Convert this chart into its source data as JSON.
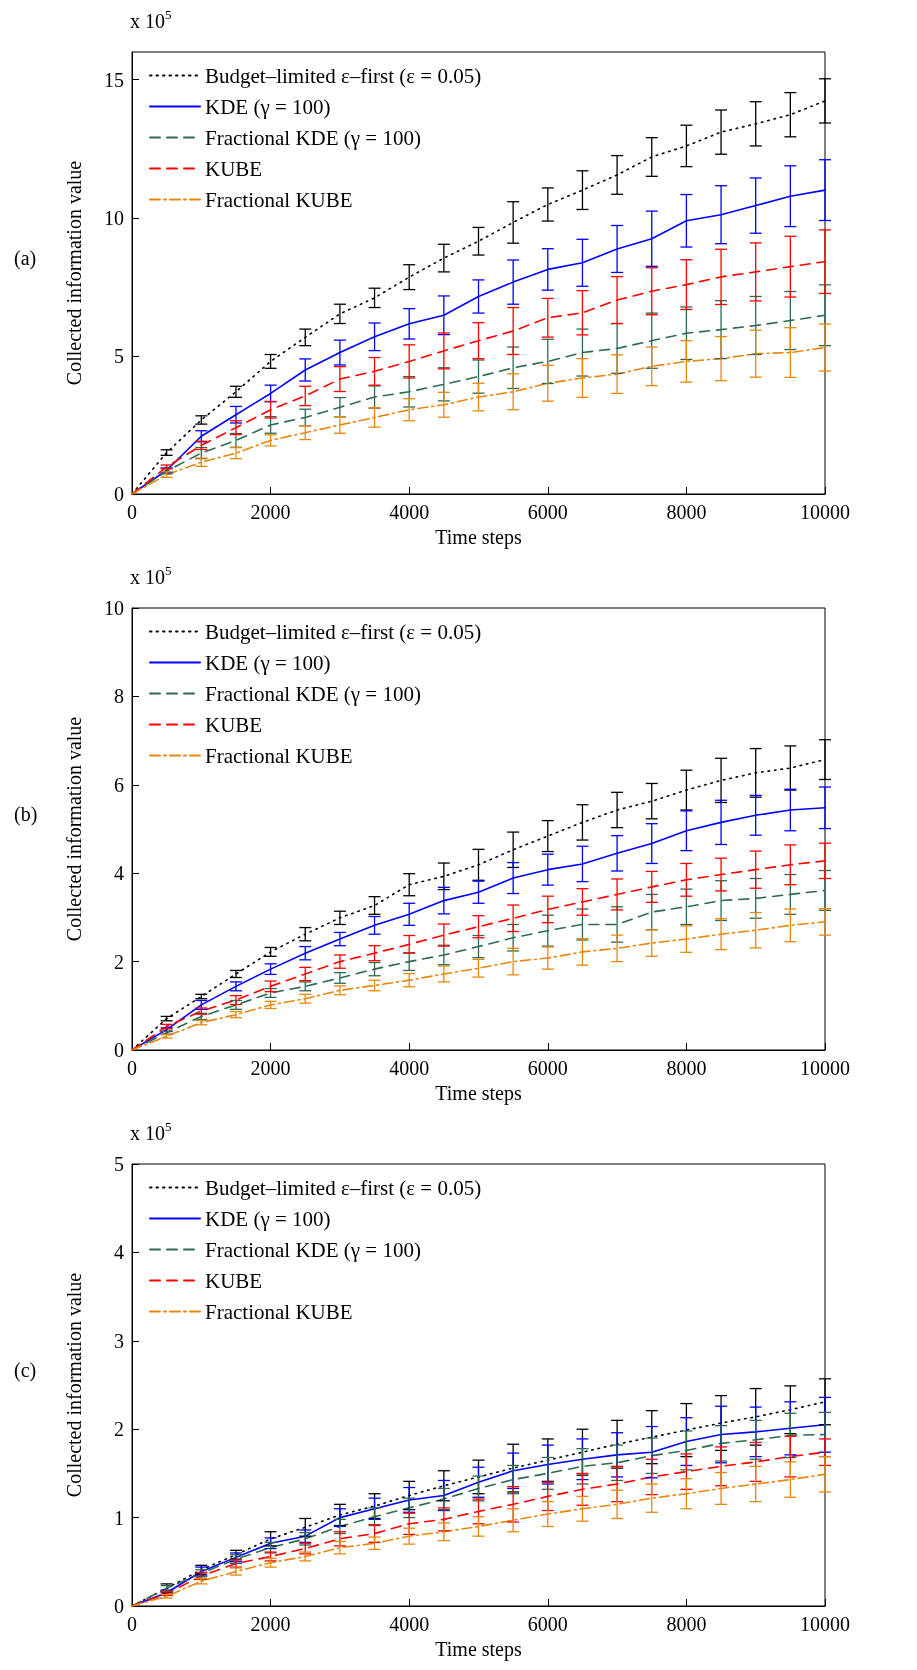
{
  "chart_data": [
    {
      "type": "line",
      "xlabel": "Time steps",
      "ylabel": "Collected information value",
      "annotations": [
        "x 10$^{5}$",
        "(a)"
      ],
      "x": [
        0,
        500,
        1000,
        1500,
        2000,
        2500,
        3000,
        3500,
        4000,
        4500,
        5000,
        5500,
        6000,
        6500,
        7000,
        7500,
        8000,
        8500,
        9000,
        9500,
        10000
      ],
      "xlim": [
        0,
        10000
      ],
      "xticks": [
        0,
        2000,
        4000,
        6000,
        8000,
        10000
      ],
      "ylim": [
        0,
        16
      ],
      "yticks": [
        0,
        5,
        10,
        15
      ],
      "grid": false,
      "legend": "top left",
      "marker": "none",
      "series": [
        {
          "name": "Budget–limited ε–first (ε = 0.05)",
          "color": "#000000",
          "line_style": "dotted",
          "values": [
            0,
            1.5,
            2.68,
            3.7,
            4.8,
            5.67,
            6.52,
            7.1,
            7.85,
            8.54,
            9.15,
            9.83,
            10.48,
            11.0,
            11.55,
            12.2,
            12.6,
            13.1,
            13.4,
            13.73,
            14.23
          ],
          "errors": [
            null,
            0.1,
            0.15,
            0.2,
            0.25,
            0.3,
            0.35,
            0.35,
            0.45,
            0.5,
            0.5,
            0.75,
            0.6,
            0.7,
            0.7,
            0.7,
            0.75,
            0.8,
            0.8,
            0.8,
            0.8
          ]
        },
        {
          "name": "KDE (γ = 100)",
          "color": "#0000ff",
          "line_style": "solid",
          "values": [
            0,
            0.86,
            2.09,
            2.87,
            3.64,
            4.49,
            5.12,
            5.69,
            6.16,
            6.47,
            7.15,
            7.67,
            8.13,
            8.37,
            8.87,
            9.24,
            9.89,
            10.11,
            10.44,
            10.78,
            11.0
          ],
          "errors": [
            null,
            0.08,
            0.2,
            0.3,
            0.3,
            0.4,
            0.45,
            0.5,
            0.55,
            0.7,
            0.6,
            0.8,
            0.75,
            0.85,
            0.85,
            1.0,
            0.95,
            1.05,
            1.0,
            1.1,
            1.1
          ]
        },
        {
          "name": "Fractional KDE (γ = 100)",
          "color": "#2e6b4e",
          "line_style": "dashed",
          "values": [
            0,
            0.83,
            1.48,
            1.94,
            2.5,
            2.77,
            3.14,
            3.51,
            3.7,
            3.97,
            4.25,
            4.57,
            4.8,
            5.12,
            5.27,
            5.55,
            5.82,
            5.95,
            6.1,
            6.28,
            6.47
          ],
          "errors": [
            null,
            0.1,
            0.2,
            0.25,
            0.3,
            0.3,
            0.35,
            0.4,
            0.55,
            0.6,
            0.6,
            0.75,
            0.8,
            0.85,
            0.9,
            1.0,
            0.95,
            1.05,
            1.05,
            1.05,
            1.1
          ]
        },
        {
          "name": "KUBE",
          "color": "#ff0000",
          "line_style": "dashed",
          "values": [
            0,
            0.98,
            1.76,
            2.4,
            3.05,
            3.55,
            4.16,
            4.44,
            4.8,
            5.18,
            5.55,
            5.9,
            6.38,
            6.56,
            7.02,
            7.34,
            7.58,
            7.86,
            8.04,
            8.23,
            8.41
          ],
          "errors": [
            null,
            0.07,
            0.15,
            0.25,
            0.3,
            0.35,
            0.45,
            0.5,
            0.6,
            0.65,
            0.65,
            0.85,
            0.7,
            0.8,
            0.85,
            0.85,
            0.9,
            1.0,
            1.05,
            1.1,
            1.15
          ]
        },
        {
          "name": "Fractional KUBE",
          "color": "#e8870e",
          "line_style": "dashdot",
          "values": [
            0,
            0.7,
            1.15,
            1.48,
            1.94,
            2.22,
            2.5,
            2.77,
            3.05,
            3.23,
            3.51,
            3.7,
            4.01,
            4.2,
            4.34,
            4.62,
            4.8,
            4.9,
            5.08,
            5.12,
            5.3
          ],
          "errors": [
            null,
            0.1,
            0.15,
            0.2,
            0.2,
            0.25,
            0.3,
            0.35,
            0.4,
            0.45,
            0.5,
            0.65,
            0.65,
            0.7,
            0.7,
            0.7,
            0.75,
            0.8,
            0.85,
            0.9,
            0.85
          ]
        }
      ]
    },
    {
      "type": "line",
      "xlabel": "Time steps",
      "ylabel": "Collected information value",
      "annotations": [
        "x 10$^{5}$",
        "(b)"
      ],
      "x": [
        0,
        500,
        1000,
        1500,
        2000,
        2500,
        3000,
        3500,
        4000,
        4500,
        5000,
        5500,
        6000,
        6500,
        7000,
        7500,
        8000,
        8500,
        9000,
        9500,
        10000
      ],
      "xlim": [
        0,
        10000
      ],
      "xticks": [
        0,
        2000,
        4000,
        6000,
        8000,
        10000
      ],
      "ylim": [
        0,
        10
      ],
      "yticks": [
        0,
        2,
        4,
        6,
        8,
        10
      ],
      "grid": false,
      "legend": "top left",
      "marker": "none",
      "series": [
        {
          "name": "Budget–limited ε–first (ε = 0.05)",
          "color": "#000000",
          "line_style": "dotted",
          "values": [
            0,
            0.71,
            1.21,
            1.72,
            2.22,
            2.62,
            2.99,
            3.27,
            3.74,
            3.93,
            4.19,
            4.53,
            4.84,
            5.15,
            5.43,
            5.63,
            5.88,
            6.1,
            6.27,
            6.38,
            6.57
          ],
          "errors": [
            null,
            0.05,
            0.05,
            0.08,
            0.1,
            0.15,
            0.15,
            0.2,
            0.25,
            0.3,
            0.35,
            0.4,
            0.35,
            0.4,
            0.4,
            0.4,
            0.45,
            0.5,
            0.55,
            0.5,
            0.45
          ]
        },
        {
          "name": "KDE (γ = 100)",
          "color": "#0000ff",
          "line_style": "solid",
          "values": [
            0,
            0.46,
            1.02,
            1.44,
            1.83,
            2.19,
            2.51,
            2.82,
            3.07,
            3.38,
            3.57,
            3.89,
            4.08,
            4.21,
            4.45,
            4.67,
            4.96,
            5.15,
            5.31,
            5.43,
            5.48
          ],
          "errors": [
            null,
            0.04,
            0.1,
            0.1,
            0.12,
            0.15,
            0.15,
            0.2,
            0.25,
            0.3,
            0.25,
            0.35,
            0.35,
            0.4,
            0.4,
            0.45,
            0.45,
            0.5,
            0.45,
            0.47,
            0.47
          ]
        },
        {
          "name": "Fractional KDE (γ = 100)",
          "color": "#2e6b4e",
          "line_style": "dashed",
          "values": [
            0,
            0.39,
            0.76,
            1.02,
            1.29,
            1.44,
            1.63,
            1.83,
            2.0,
            2.15,
            2.34,
            2.54,
            2.7,
            2.84,
            2.84,
            3.12,
            3.24,
            3.38,
            3.43,
            3.52,
            3.61
          ],
          "errors": [
            null,
            0.03,
            0.07,
            0.1,
            0.1,
            0.1,
            0.12,
            0.15,
            0.2,
            0.22,
            0.25,
            0.3,
            0.35,
            0.35,
            0.4,
            0.4,
            0.4,
            0.45,
            0.45,
            0.45,
            0.45
          ]
        },
        {
          "name": "KUBE",
          "color": "#ff0000",
          "line_style": "dashed",
          "values": [
            0,
            0.53,
            0.88,
            1.13,
            1.44,
            1.72,
            2.0,
            2.19,
            2.39,
            2.6,
            2.79,
            2.98,
            3.18,
            3.35,
            3.52,
            3.69,
            3.85,
            3.97,
            4.08,
            4.19,
            4.28
          ],
          "errors": [
            null,
            0.05,
            0.07,
            0.1,
            0.12,
            0.15,
            0.15,
            0.17,
            0.2,
            0.25,
            0.25,
            0.3,
            0.3,
            0.3,
            0.35,
            0.35,
            0.37,
            0.37,
            0.42,
            0.45,
            0.4
          ]
        },
        {
          "name": "Fractional KUBE",
          "color": "#e8870e",
          "line_style": "dashdot",
          "values": [
            0,
            0.31,
            0.62,
            0.8,
            1.02,
            1.16,
            1.35,
            1.46,
            1.58,
            1.72,
            1.85,
            2.0,
            2.08,
            2.22,
            2.3,
            2.42,
            2.51,
            2.62,
            2.71,
            2.82,
            2.9
          ],
          "errors": [
            null,
            0.04,
            0.05,
            0.07,
            0.08,
            0.1,
            0.1,
            0.12,
            0.15,
            0.18,
            0.2,
            0.3,
            0.25,
            0.3,
            0.3,
            0.3,
            0.3,
            0.35,
            0.4,
            0.37,
            0.3
          ]
        }
      ]
    },
    {
      "type": "line",
      "xlabel": "Time steps",
      "ylabel": "Collected information value",
      "annotations": [
        "x 10$^{5}$",
        "(c)"
      ],
      "x": [
        0,
        500,
        1000,
        1500,
        2000,
        2500,
        3000,
        3500,
        4000,
        4500,
        5000,
        5500,
        6000,
        6500,
        7000,
        7500,
        8000,
        8500,
        9000,
        9500,
        10000
      ],
      "xlim": [
        0,
        10000
      ],
      "xticks": [
        0,
        2000,
        4000,
        6000,
        8000,
        10000
      ],
      "ylim": [
        0,
        5
      ],
      "yticks": [
        0,
        1,
        2,
        3,
        4,
        5
      ],
      "grid": false,
      "legend": "top left",
      "marker": "none",
      "series": [
        {
          "name": "Budget–limited ε–first (ε = 0.05)",
          "color": "#000000",
          "line_style": "dotted",
          "values": [
            0,
            0.2,
            0.41,
            0.58,
            0.76,
            0.89,
            1.03,
            1.13,
            1.25,
            1.36,
            1.46,
            1.56,
            1.65,
            1.74,
            1.83,
            1.91,
            1.99,
            2.07,
            2.14,
            2.22,
            2.31
          ],
          "errors": [
            null,
            0.05,
            0.05,
            0.05,
            0.08,
            0.1,
            0.12,
            0.14,
            0.16,
            0.17,
            0.19,
            0.27,
            0.24,
            0.26,
            0.27,
            0.3,
            0.3,
            0.31,
            0.32,
            0.27,
            0.26
          ]
        },
        {
          "name": "KDE (γ = 100)",
          "color": "#0000ff",
          "line_style": "solid",
          "values": [
            0,
            0.15,
            0.39,
            0.55,
            0.71,
            0.79,
            1.0,
            1.1,
            1.2,
            1.25,
            1.4,
            1.53,
            1.6,
            1.66,
            1.71,
            1.74,
            1.86,
            1.94,
            1.97,
            2.01,
            2.05
          ],
          "errors": [
            null,
            0.03,
            0.05,
            0.05,
            0.06,
            0.07,
            0.1,
            0.12,
            0.14,
            0.17,
            0.17,
            0.2,
            0.22,
            0.23,
            0.25,
            0.29,
            0.27,
            0.32,
            0.28,
            0.3,
            0.31
          ]
        },
        {
          "name": "Fractional KDE (γ = 100)",
          "color": "#2e6b4e",
          "line_style": "dashed",
          "values": [
            0,
            0.2,
            0.37,
            0.53,
            0.66,
            0.76,
            0.9,
            1.01,
            1.11,
            1.21,
            1.33,
            1.43,
            1.5,
            1.58,
            1.62,
            1.7,
            1.76,
            1.84,
            1.88,
            1.93,
            1.94
          ],
          "errors": [
            null,
            0.03,
            0.04,
            0.05,
            0.06,
            0.07,
            0.08,
            0.1,
            0.11,
            0.12,
            0.14,
            0.16,
            0.18,
            0.2,
            0.2,
            0.2,
            0.22,
            0.2,
            0.22,
            0.25,
            0.25
          ]
        },
        {
          "name": "KUBE",
          "color": "#ff0000",
          "line_style": "dashed",
          "values": [
            0,
            0.14,
            0.34,
            0.48,
            0.56,
            0.65,
            0.76,
            0.82,
            0.93,
            0.98,
            1.07,
            1.15,
            1.24,
            1.32,
            1.38,
            1.46,
            1.52,
            1.58,
            1.63,
            1.69,
            1.74
          ],
          "errors": [
            null,
            0.02,
            0.04,
            0.04,
            0.05,
            0.06,
            0.08,
            0.1,
            0.12,
            0.13,
            0.14,
            0.2,
            0.16,
            0.18,
            0.2,
            0.2,
            0.2,
            0.22,
            0.22,
            0.23,
            0.15
          ]
        },
        {
          "name": "Fractional KUBE",
          "color": "#e8870e",
          "line_style": "dashdot",
          "values": [
            0,
            0.11,
            0.28,
            0.39,
            0.49,
            0.56,
            0.66,
            0.71,
            0.79,
            0.84,
            0.9,
            0.97,
            1.04,
            1.1,
            1.15,
            1.22,
            1.27,
            1.33,
            1.38,
            1.43,
            1.49
          ],
          "errors": [
            null,
            0.02,
            0.03,
            0.04,
            0.05,
            0.05,
            0.07,
            0.07,
            0.09,
            0.1,
            0.11,
            0.13,
            0.14,
            0.14,
            0.16,
            0.16,
            0.17,
            0.18,
            0.2,
            0.2,
            0.2
          ]
        }
      ]
    }
  ]
}
